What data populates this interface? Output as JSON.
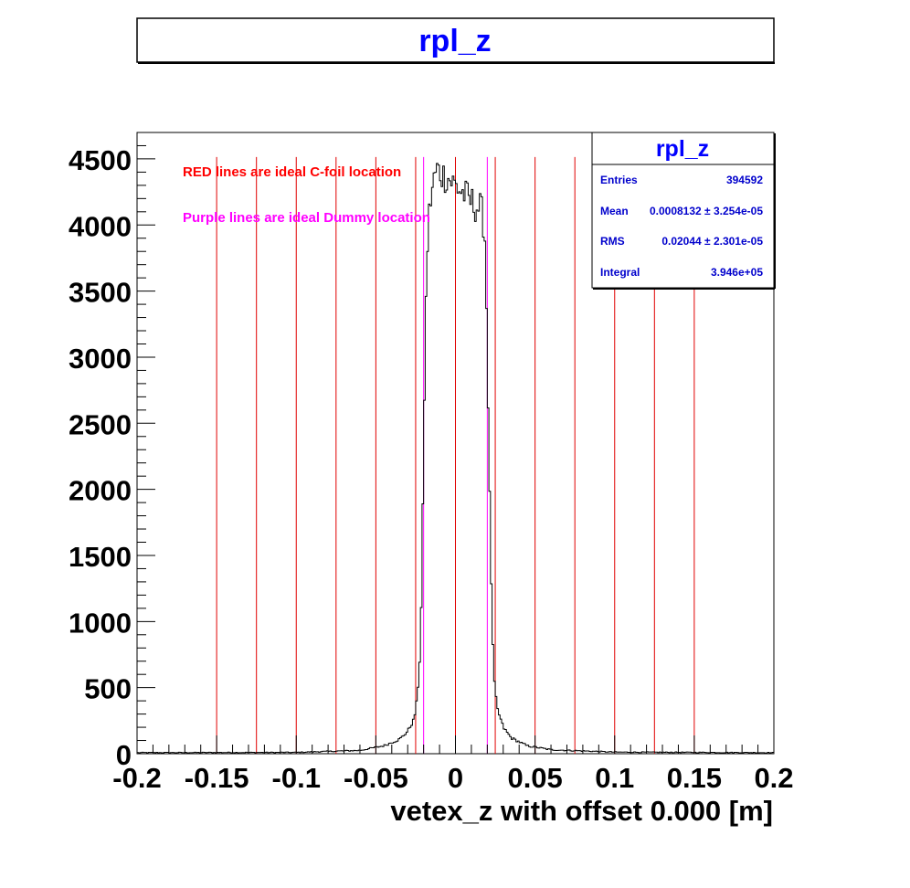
{
  "title": "rpl_z",
  "colors": {
    "title": "#0000ff",
    "red_lines": "#e00000",
    "purple_lines": "#ff00ff",
    "histogram": "#000000",
    "stats_text": "#0000cc"
  },
  "annotations": {
    "red": "RED lines are ideal C-foil location",
    "purple": "Purple lines are ideal Dummy location"
  },
  "stats": {
    "title": "rpl_z",
    "rows": [
      {
        "label": "Entries",
        "value": "394592"
      },
      {
        "label": "Mean",
        "value": "0.0008132 ± 3.254e-05"
      },
      {
        "label": "RMS",
        "value": "0.02044 ± 2.301e-05"
      },
      {
        "label": "Integral",
        "value": "3.946e+05"
      }
    ]
  },
  "chart_data": {
    "type": "histogram",
    "xlabel": "vetex_z with offset 0.000 [m]",
    "ylabel": "",
    "xlim": [
      -0.2,
      0.2
    ],
    "ylim": [
      0,
      4700
    ],
    "x_ticks": [
      -0.2,
      -0.15,
      -0.1,
      -0.05,
      0,
      0.05,
      0.1,
      0.15,
      0.2
    ],
    "x_tick_labels": [
      "-0.2",
      "-0.15",
      "-0.1",
      "-0.05",
      "0",
      "0.05",
      "0.1",
      "0.15",
      "0.2"
    ],
    "y_ticks": [
      0,
      500,
      1000,
      1500,
      2000,
      2500,
      3000,
      3500,
      4000,
      4500
    ],
    "y_tick_labels": [
      "0",
      "500",
      "1000",
      "1500",
      "2000",
      "2500",
      "3000",
      "3500",
      "4000",
      "4500"
    ],
    "red_lines_x": [
      -0.15,
      -0.125,
      -0.1,
      -0.075,
      -0.05,
      -0.025,
      0,
      0.025,
      0.05,
      0.075,
      0.1,
      0.125,
      0.15
    ],
    "purple_lines_x": [
      -0.02,
      0.02
    ],
    "profile": [
      [
        -0.2,
        8
      ],
      [
        -0.1,
        10
      ],
      [
        -0.06,
        25
      ],
      [
        -0.045,
        60
      ],
      [
        -0.035,
        110
      ],
      [
        -0.03,
        170
      ],
      [
        -0.026,
        260
      ],
      [
        -0.024,
        420
      ],
      [
        -0.022,
        800
      ],
      [
        -0.021,
        1400
      ],
      [
        -0.02,
        2300
      ],
      [
        -0.019,
        3100
      ],
      [
        -0.018,
        3700
      ],
      [
        -0.017,
        4000
      ],
      [
        -0.016,
        4150
      ],
      [
        -0.015,
        4250
      ],
      [
        -0.012,
        4420
      ],
      [
        -0.008,
        4380
      ],
      [
        -0.004,
        4350
      ],
      [
        0,
        4300
      ],
      [
        0.004,
        4250
      ],
      [
        0.008,
        4200
      ],
      [
        0.012,
        4150
      ],
      [
        0.016,
        4120
      ],
      [
        0.018,
        4000
      ],
      [
        0.019,
        3800
      ],
      [
        0.02,
        3000
      ],
      [
        0.021,
        2300
      ],
      [
        0.022,
        1600
      ],
      [
        0.023,
        1000
      ],
      [
        0.024,
        600
      ],
      [
        0.026,
        350
      ],
      [
        0.03,
        200
      ],
      [
        0.035,
        120
      ],
      [
        0.045,
        60
      ],
      [
        0.06,
        30
      ],
      [
        0.1,
        12
      ],
      [
        0.2,
        8
      ]
    ]
  }
}
